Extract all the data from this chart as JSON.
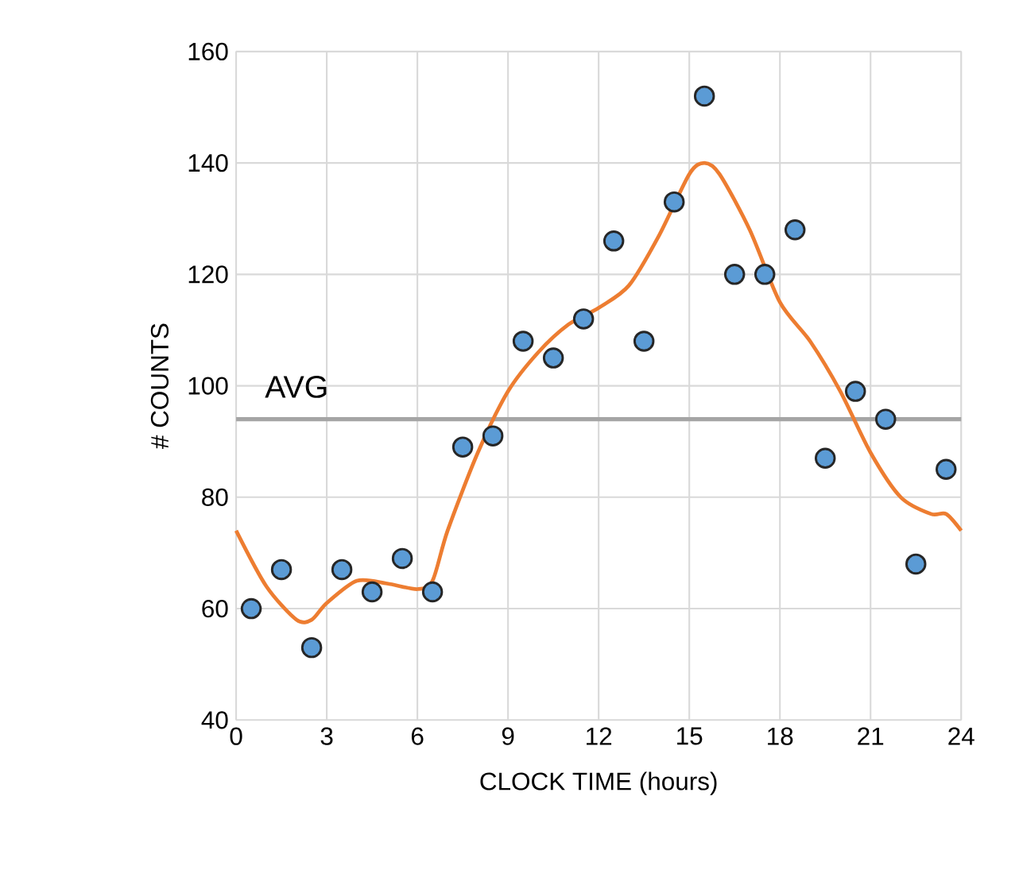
{
  "chart_data": {
    "type": "scatter",
    "xlabel": "CLOCK TIME (hours)",
    "ylabel": "# COUNTS",
    "xlim": [
      0,
      24
    ],
    "xticks": [
      0,
      3,
      6,
      9,
      12,
      15,
      18,
      21,
      24
    ],
    "ylim": [
      40,
      160
    ],
    "yticks": [
      40,
      60,
      80,
      100,
      120,
      140,
      160
    ],
    "grid": true,
    "marker": "circle",
    "x": [
      0.5,
      1.5,
      2.5,
      3.5,
      4.5,
      5.5,
      6.5,
      7.5,
      8.5,
      9.5,
      10.5,
      11.5,
      12.5,
      13.5,
      14.5,
      15.5,
      16.5,
      17.5,
      18.5,
      19.5,
      20.5,
      21.5,
      22.5,
      23.5
    ],
    "series": [
      {
        "color": "#5b9bd5",
        "values": [
          60,
          67,
          53,
          67,
          63,
          69,
          63,
          89,
          91,
          108,
          105,
          112,
          126,
          108,
          133,
          152,
          120,
          120,
          128,
          87,
          99,
          94,
          68,
          85
        ]
      },
      {
        "type": "line",
        "color": "#ed7d31",
        "marker": "none",
        "x": [
          0,
          1,
          2,
          2.5,
          3,
          4,
          5,
          6,
          6.5,
          7,
          8,
          9,
          10,
          11,
          12,
          13,
          14,
          15,
          15.5,
          16,
          17,
          18,
          19,
          20,
          21,
          22,
          23,
          23.5,
          24
        ],
        "values": [
          74,
          64,
          58,
          58,
          61,
          65,
          64.5,
          63.5,
          65,
          74,
          88,
          99,
          106,
          111,
          114,
          118,
          127,
          138,
          140,
          138,
          128,
          115,
          108,
          99,
          88,
          80,
          77,
          77,
          74
        ]
      }
    ],
    "ref_lines": [
      {
        "axis": "y",
        "value": 94,
        "label": "AVG",
        "color": "#a5a5a5"
      }
    ]
  }
}
